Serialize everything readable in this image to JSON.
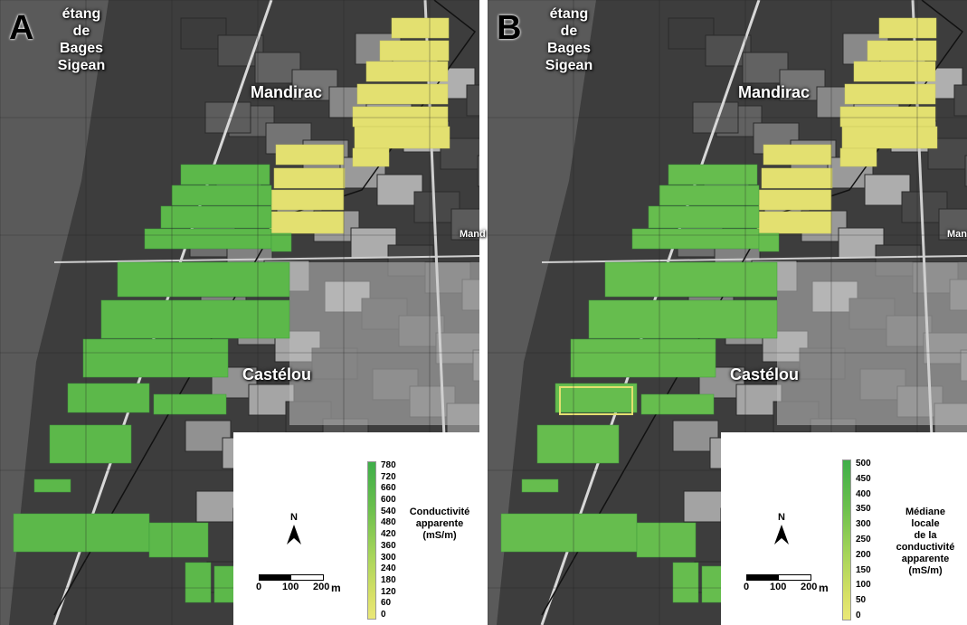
{
  "colors": {
    "field_green": "#5cb84a",
    "field_yellow": "#e3e070",
    "background_dark": "#3d3d3d",
    "legend_high": "#3fae49",
    "legend_low": "#eae878"
  },
  "place_names": {
    "lagoon_line1": "étang",
    "lagoon_line2": "de",
    "lagoon_line3": "Bages",
    "lagoon_line4": "Sigean",
    "mandirac": "Mandirac",
    "castelou": "Castélou",
    "mand_edge": "Mand"
  },
  "panels": [
    {
      "letter": "A",
      "legend": {
        "title": [
          "Conductivité",
          "apparente",
          "(mS/m)"
        ],
        "ticks": [
          "780",
          "720",
          "660",
          "600",
          "540",
          "480",
          "420",
          "360",
          "300",
          "240",
          "180",
          "120",
          "60",
          "0"
        ]
      }
    },
    {
      "letter": "B",
      "legend": {
        "title": [
          "Médiane",
          "locale",
          "de la",
          "conductivité",
          "apparente",
          "(mS/m)"
        ],
        "ticks": [
          "500",
          "450",
          "400",
          "350",
          "300",
          "250",
          "200",
          "150",
          "100",
          "50",
          "0"
        ]
      }
    }
  ],
  "north_arrow": {
    "label": "N"
  },
  "scale_bar": {
    "ticks": [
      "0",
      "100",
      "200"
    ],
    "unit": "m"
  }
}
